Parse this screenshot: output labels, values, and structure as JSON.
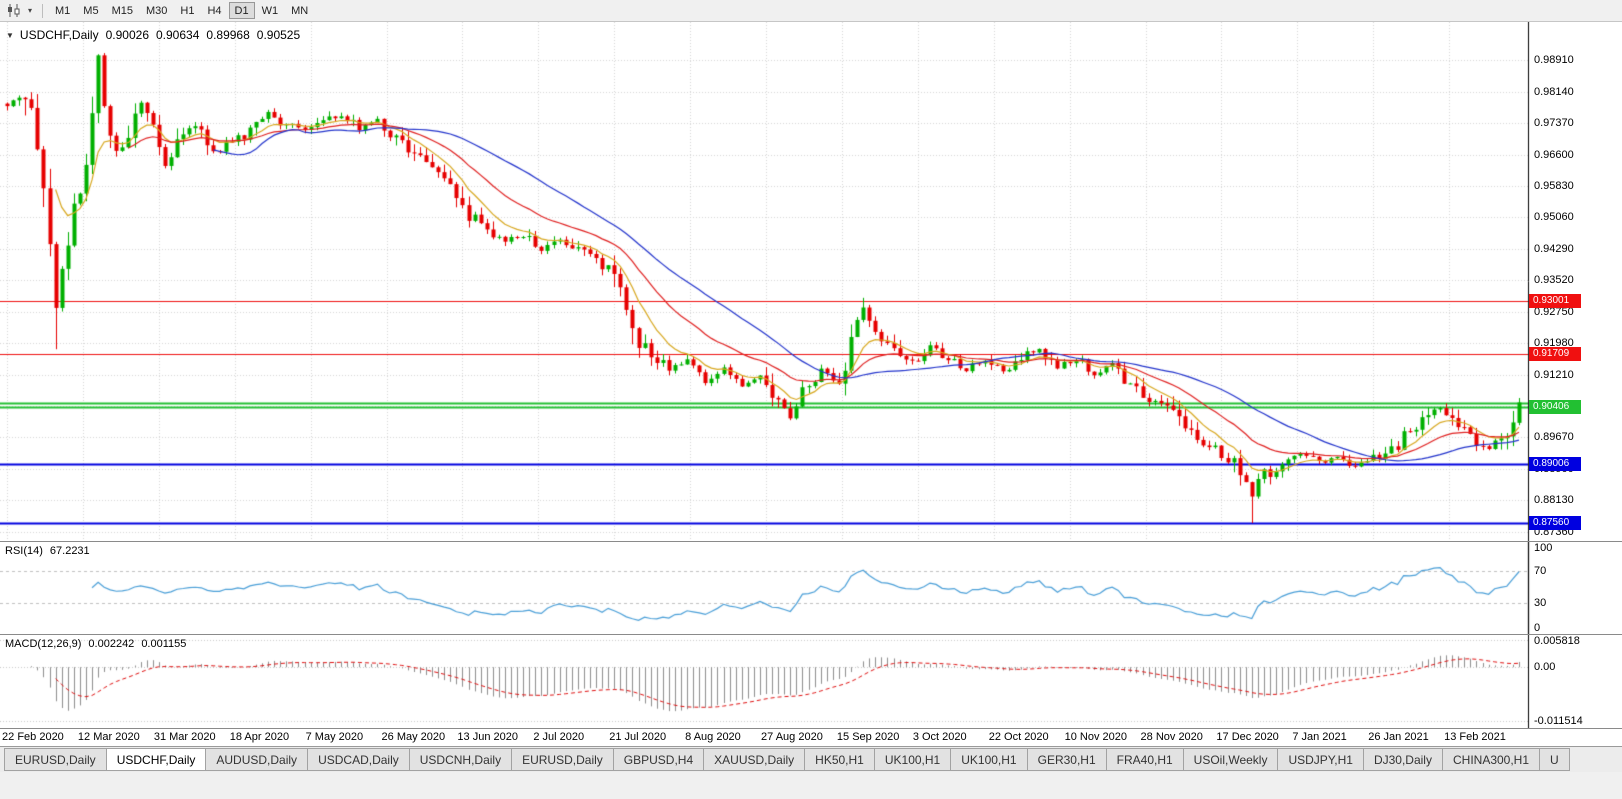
{
  "toolbar": {
    "timeframes": [
      "M1",
      "M5",
      "M15",
      "M30",
      "H1",
      "H4",
      "D1",
      "W1",
      "MN"
    ],
    "active_timeframe": "D1"
  },
  "chart": {
    "title": "USDCHF,Daily",
    "ohlc": {
      "open": "0.90026",
      "high": "0.90634",
      "low": "0.89968",
      "close": "0.90525"
    }
  },
  "rsi_panel": {
    "label": "RSI(14)",
    "value": "67.2231"
  },
  "macd_panel": {
    "label": "MACD(12,26,9)",
    "value_main": "0.002242",
    "value_signal": "0.001155"
  },
  "tabs": [
    {
      "label": "EURUSD,Daily",
      "active": false
    },
    {
      "label": "USDCHF,Daily",
      "active": true
    },
    {
      "label": "AUDUSD,Daily",
      "active": false
    },
    {
      "label": "USDCAD,Daily",
      "active": false
    },
    {
      "label": "USDCNH,Daily",
      "active": false
    },
    {
      "label": "EURUSD,Daily",
      "active": false
    },
    {
      "label": "GBPUSD,H4",
      "active": false
    },
    {
      "label": "XAUUSD,Daily",
      "active": false
    },
    {
      "label": "HK50,H1",
      "active": false
    },
    {
      "label": "UK100,H1",
      "active": false
    },
    {
      "label": "UK100,H1",
      "active": false
    },
    {
      "label": "GER30,H1",
      "active": false
    },
    {
      "label": "FRA40,H1",
      "active": false
    },
    {
      "label": "USOil,Weekly",
      "active": false
    },
    {
      "label": "USDJPY,H1",
      "active": false
    },
    {
      "label": "DJ30,Daily",
      "active": false
    },
    {
      "label": "CHINA300,H1",
      "active": false
    },
    {
      "label": "U",
      "active": false
    }
  ],
  "chart_data": {
    "type": "candlestick",
    "symbol": "USDCHF",
    "period": "Daily",
    "candle_count": 250,
    "price_top": 0.9985,
    "price_bottom": 0.8713,
    "colors": {
      "bull": "#00b000",
      "bear": "#e60000",
      "grid": "#d6d6d6",
      "axis_line": "#000000",
      "background": "#ffffff"
    },
    "price_axis_labels": [
      "0.98910",
      "0.98140",
      "0.97370",
      "0.96600",
      "0.95830",
      "0.95060",
      "0.94290",
      "0.93520",
      "0.92750",
      "0.91980",
      "0.91210",
      "0.90440",
      "0.89670",
      "0.88900",
      "0.88130",
      "0.87360"
    ],
    "date_labels": [
      "22 Feb 2020",
      "12 Mar 2020",
      "31 Mar 2020",
      "18 Apr 2020",
      "7 May 2020",
      "26 May 2020",
      "13 Jun 2020",
      "2 Jul 2020",
      "21 Jul 2020",
      "8 Aug 2020",
      "27 Aug 2020",
      "15 Sep 2020",
      "3 Oct 2020",
      "22 Oct 2020",
      "10 Nov 2020",
      "28 Nov 2020",
      "17 Dec 2020",
      "7 Jan 2021",
      "26 Jan 2021",
      "13 Feb 2021"
    ],
    "hlines": [
      {
        "price": 0.93001,
        "tag": "0.93001",
        "color": "#f01010",
        "thickness": 1
      },
      {
        "price": 0.91709,
        "tag": "0.91709",
        "color": "#f01010",
        "thickness": 1
      },
      {
        "price": 0.9052,
        "tag": null,
        "color": "#22c032",
        "thickness": 2
      },
      {
        "price": 0.90406,
        "tag": "0.90406",
        "color": "#22c032",
        "thickness": 2
      },
      {
        "price": 0.89006,
        "tag": "0.89006",
        "color": "#0000e0",
        "thickness": 2
      },
      {
        "price": 0.8756,
        "tag": "0.87560",
        "color": "#0000e0",
        "thickness": 2
      }
    ],
    "price_anchors": [
      [
        0,
        0.9785
      ],
      [
        2,
        0.9808
      ],
      [
        4,
        0.976
      ],
      [
        6,
        0.96
      ],
      [
        7,
        0.943
      ],
      [
        8,
        0.93
      ],
      [
        9,
        0.938
      ],
      [
        11,
        0.952
      ],
      [
        13,
        0.966
      ],
      [
        15,
        0.989
      ],
      [
        16,
        0.979
      ],
      [
        18,
        0.966
      ],
      [
        20,
        0.9705
      ],
      [
        22,
        0.979
      ],
      [
        24,
        0.972
      ],
      [
        26,
        0.9635
      ],
      [
        28,
        0.969
      ],
      [
        31,
        0.973
      ],
      [
        34,
        0.966
      ],
      [
        37,
        0.969
      ],
      [
        40,
        0.9715
      ],
      [
        43,
        0.976
      ],
      [
        46,
        0.973
      ],
      [
        49,
        0.9715
      ],
      [
        52,
        0.974
      ],
      [
        55,
        0.9755
      ],
      [
        58,
        0.9725
      ],
      [
        61,
        0.974
      ],
      [
        64,
        0.9705
      ],
      [
        67,
        0.9665
      ],
      [
        70,
        0.9625
      ],
      [
        73,
        0.9585
      ],
      [
        76,
        0.9515
      ],
      [
        79,
        0.948
      ],
      [
        82,
        0.9445
      ],
      [
        85,
        0.9465
      ],
      [
        88,
        0.9425
      ],
      [
        91,
        0.9455
      ],
      [
        94,
        0.9425
      ],
      [
        97,
        0.94
      ],
      [
        100,
        0.936
      ],
      [
        102,
        0.927
      ],
      [
        104,
        0.921
      ],
      [
        106,
        0.9175
      ],
      [
        109,
        0.9135
      ],
      [
        112,
        0.915
      ],
      [
        115,
        0.9105
      ],
      [
        118,
        0.9135
      ],
      [
        121,
        0.909
      ],
      [
        124,
        0.9115
      ],
      [
        127,
        0.905
      ],
      [
        129,
        0.902
      ],
      [
        131,
        0.9085
      ],
      [
        134,
        0.913
      ],
      [
        137,
        0.9105
      ],
      [
        139,
        0.9195
      ],
      [
        141,
        0.9285
      ],
      [
        143,
        0.9225
      ],
      [
        146,
        0.918
      ],
      [
        149,
        0.915
      ],
      [
        152,
        0.919
      ],
      [
        155,
        0.916
      ],
      [
        158,
        0.9135
      ],
      [
        161,
        0.9155
      ],
      [
        164,
        0.9125
      ],
      [
        167,
        0.916
      ],
      [
        170,
        0.918
      ],
      [
        173,
        0.914
      ],
      [
        176,
        0.916
      ],
      [
        179,
        0.9125
      ],
      [
        182,
        0.9145
      ],
      [
        185,
        0.91
      ],
      [
        188,
        0.906
      ],
      [
        191,
        0.904
      ],
      [
        194,
        0.899
      ],
      [
        197,
        0.8955
      ],
      [
        200,
        0.8925
      ],
      [
        202,
        0.8905
      ],
      [
        204,
        0.886
      ],
      [
        205,
        0.8825
      ],
      [
        206,
        0.8855
      ],
      [
        208,
        0.8885
      ],
      [
        210,
        0.8905
      ],
      [
        213,
        0.8925
      ],
      [
        216,
        0.8905
      ],
      [
        219,
        0.8925
      ],
      [
        222,
        0.8895
      ],
      [
        225,
        0.8915
      ],
      [
        228,
        0.8935
      ],
      [
        231,
        0.8985
      ],
      [
        234,
        0.903
      ],
      [
        236,
        0.904
      ],
      [
        238,
        0.9015
      ],
      [
        240,
        0.8985
      ],
      [
        242,
        0.8955
      ],
      [
        244,
        0.8935
      ],
      [
        246,
        0.8965
      ],
      [
        248,
        0.9
      ],
      [
        249,
        0.90525
      ]
    ],
    "special_candles": {
      "8": {
        "low": 0.9183
      },
      "15": {
        "high": 0.9906
      },
      "141": {
        "high": 0.9309
      },
      "205": {
        "low": 0.8757
      },
      "249": {
        "open": 0.90026,
        "high": 0.90634,
        "low": 0.89968,
        "close": 0.90525
      }
    },
    "moving_averages": [
      {
        "type": "EMA",
        "period": 8,
        "color": "#d8a820"
      },
      {
        "type": "EMA",
        "period": 20,
        "color": "#e02020"
      },
      {
        "type": "SMA",
        "period": 34,
        "color": "#2233cc"
      }
    ],
    "rsi": {
      "period": 14,
      "levels": [
        70,
        30
      ],
      "axis_labels": [
        {
          "text": "100",
          "value": 100
        },
        {
          "text": "70",
          "value": 70
        },
        {
          "text": "30",
          "value": 30
        },
        {
          "text": "0",
          "value": 0
        }
      ],
      "color": "#4a9fd8",
      "last_value": 67.2231
    },
    "macd": {
      "fast": 12,
      "slow": 26,
      "signal": 9,
      "max": 0.005818,
      "min": -0.011514,
      "axis_labels": [
        {
          "text": "0.005818",
          "value": 0.005818
        },
        {
          "text": "0.00",
          "value": 0.0
        },
        {
          "text": "-0.011514",
          "value": -0.011514
        }
      ],
      "hist_color": "#8e8e8e",
      "signal_color": "#e01010"
    }
  }
}
